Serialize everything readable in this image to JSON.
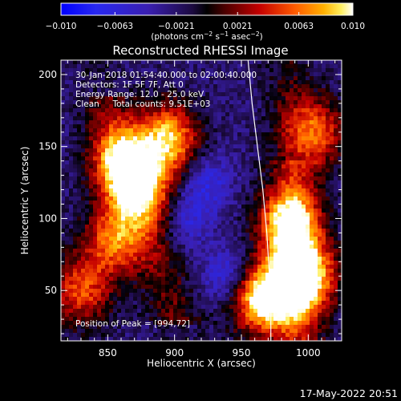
{
  "colorbar": {
    "tick_labels": [
      "−0.010",
      "−0.0063",
      "−0.0021",
      "0.0021",
      "0.0063",
      "0.010"
    ],
    "tick_values": [
      -0.01,
      -0.0063,
      -0.0021,
      0.0021,
      0.0063,
      0.01
    ],
    "range": [
      -0.01,
      0.01
    ],
    "units_label": "(photons cm",
    "units_sup1": "−2",
    "units_mid1": " s",
    "units_sup2": "−1",
    "units_mid2": " asec",
    "units_sup3": "−2",
    "units_end": ")"
  },
  "plot": {
    "title": "Reconstructed RHESSI Image",
    "info_lines": [
      "30-Jan-2018 01:54:40.000 to 02:00:40.000",
      "Detectors: 1F 5F 7F, Att 0",
      "Energy Range: 12.0 - 25.0 keV",
      "Clean     Total counts: 9.51E+03"
    ],
    "peak_label": "Position of Peak = [994,72]",
    "footer_timestamp": "17-May-2022 20:51"
  },
  "chart_data": {
    "type": "heatmap",
    "title": "Reconstructed RHESSI Image",
    "xlabel": "Heliocentric X (arcsec)",
    "ylabel": "Heliocentric Y (arcsec)",
    "xlim": [
      815,
      1025
    ],
    "ylim": [
      15,
      210
    ],
    "x_ticks": [
      850,
      900,
      950,
      1000
    ],
    "y_ticks": [
      50,
      100,
      150,
      200
    ],
    "colorbar_range": [
      -0.01,
      0.01
    ],
    "colormap": "rhessi (blue-black-red-yellow-white)",
    "peak_position": [
      994,
      72
    ],
    "bright_regions": [
      {
        "x": 895,
        "y": 155,
        "level": 0.85
      },
      {
        "x": 860,
        "y": 140,
        "level": 0.75
      },
      {
        "x": 875,
        "y": 120,
        "level": 0.7
      },
      {
        "x": 855,
        "y": 85,
        "level": 0.6
      },
      {
        "x": 830,
        "y": 50,
        "level": 0.5
      },
      {
        "x": 985,
        "y": 95,
        "level": 0.9
      },
      {
        "x": 1000,
        "y": 60,
        "level": 0.8
      },
      {
        "x": 975,
        "y": 45,
        "level": 0.7
      },
      {
        "x": 1005,
        "y": 160,
        "level": 0.55
      },
      {
        "x": 960,
        "y": 45,
        "level": 0.45
      }
    ],
    "dark_regions": [
      {
        "x": 925,
        "y": 125,
        "level": -0.4
      },
      {
        "x": 940,
        "y": 60,
        "level": -0.5
      },
      {
        "x": 910,
        "y": 100,
        "level": -0.35
      }
    ],
    "limb_curve": [
      [
        955,
        210
      ],
      [
        958,
        180
      ],
      [
        962,
        150
      ],
      [
        966,
        120
      ],
      [
        969,
        90
      ],
      [
        971,
        60
      ],
      [
        972,
        35
      ],
      [
        972,
        15
      ]
    ],
    "grid": false
  },
  "colors": {
    "background": "#000000",
    "text": "#ffffff",
    "limb": "#ffffff"
  }
}
